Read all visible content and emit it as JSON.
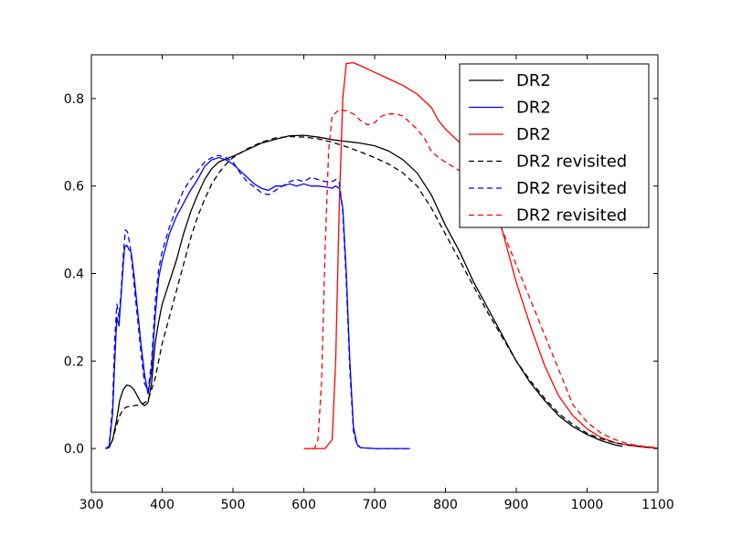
{
  "chart_data": {
    "type": "line",
    "title": "",
    "xlabel": "",
    "ylabel": "",
    "xlim": [
      300,
      1100
    ],
    "ylim": [
      -0.1,
      0.9
    ],
    "xticks": [
      300,
      400,
      500,
      600,
      700,
      800,
      900,
      1000,
      1100
    ],
    "yticks": [
      0.0,
      0.2,
      0.4,
      0.6,
      0.8
    ],
    "xtick_labels": [
      "300",
      "400",
      "500",
      "600",
      "700",
      "800",
      "900",
      "1000",
      "1100"
    ],
    "ytick_labels": [
      "0.0",
      "0.2",
      "0.4",
      "0.6",
      "0.8"
    ],
    "grid": false,
    "legend_position": "top-right",
    "series": [
      {
        "name": "DR2",
        "color": "#000000",
        "dash": "solid",
        "points": [
          [
            320,
            0.0
          ],
          [
            325,
            0.002
          ],
          [
            330,
            0.02
          ],
          [
            335,
            0.06
          ],
          [
            340,
            0.11
          ],
          [
            345,
            0.135
          ],
          [
            350,
            0.145
          ],
          [
            355,
            0.143
          ],
          [
            360,
            0.135
          ],
          [
            365,
            0.12
          ],
          [
            370,
            0.105
          ],
          [
            375,
            0.098
          ],
          [
            380,
            0.105
          ],
          [
            385,
            0.15
          ],
          [
            390,
            0.24
          ],
          [
            395,
            0.29
          ],
          [
            400,
            0.33
          ],
          [
            410,
            0.38
          ],
          [
            420,
            0.43
          ],
          [
            430,
            0.49
          ],
          [
            440,
            0.54
          ],
          [
            450,
            0.58
          ],
          [
            460,
            0.615
          ],
          [
            470,
            0.64
          ],
          [
            480,
            0.655
          ],
          [
            490,
            0.662
          ],
          [
            500,
            0.668
          ],
          [
            520,
            0.683
          ],
          [
            540,
            0.698
          ],
          [
            560,
            0.707
          ],
          [
            580,
            0.715
          ],
          [
            600,
            0.716
          ],
          [
            620,
            0.712
          ],
          [
            640,
            0.706
          ],
          [
            660,
            0.702
          ],
          [
            680,
            0.698
          ],
          [
            700,
            0.692
          ],
          [
            720,
            0.68
          ],
          [
            740,
            0.66
          ],
          [
            760,
            0.63
          ],
          [
            780,
            0.58
          ],
          [
            800,
            0.51
          ],
          [
            820,
            0.45
          ],
          [
            840,
            0.38
          ],
          [
            860,
            0.32
          ],
          [
            880,
            0.26
          ],
          [
            900,
            0.2
          ],
          [
            920,
            0.15
          ],
          [
            940,
            0.11
          ],
          [
            960,
            0.075
          ],
          [
            980,
            0.05
          ],
          [
            1000,
            0.032
          ],
          [
            1020,
            0.018
          ],
          [
            1040,
            0.008
          ],
          [
            1050,
            0.005
          ]
        ]
      },
      {
        "name": "DR2",
        "color": "#0000ff",
        "dash": "solid",
        "points": [
          [
            320,
            0.0
          ],
          [
            325,
            0.005
          ],
          [
            330,
            0.08
          ],
          [
            333,
            0.2
          ],
          [
            336,
            0.3
          ],
          [
            339,
            0.28
          ],
          [
            342,
            0.35
          ],
          [
            345,
            0.42
          ],
          [
            347,
            0.46
          ],
          [
            350,
            0.465
          ],
          [
            353,
            0.455
          ],
          [
            356,
            0.45
          ],
          [
            360,
            0.4
          ],
          [
            365,
            0.32
          ],
          [
            370,
            0.24
          ],
          [
            375,
            0.17
          ],
          [
            380,
            0.125
          ],
          [
            385,
            0.18
          ],
          [
            390,
            0.3
          ],
          [
            395,
            0.39
          ],
          [
            400,
            0.43
          ],
          [
            410,
            0.49
          ],
          [
            420,
            0.53
          ],
          [
            430,
            0.56
          ],
          [
            440,
            0.59
          ],
          [
            450,
            0.615
          ],
          [
            460,
            0.645
          ],
          [
            470,
            0.66
          ],
          [
            480,
            0.665
          ],
          [
            490,
            0.66
          ],
          [
            500,
            0.65
          ],
          [
            510,
            0.635
          ],
          [
            520,
            0.62
          ],
          [
            530,
            0.605
          ],
          [
            540,
            0.595
          ],
          [
            550,
            0.59
          ],
          [
            560,
            0.6
          ],
          [
            570,
            0.6
          ],
          [
            580,
            0.605
          ],
          [
            590,
            0.6
          ],
          [
            600,
            0.605
          ],
          [
            610,
            0.6
          ],
          [
            620,
            0.6
          ],
          [
            630,
            0.598
          ],
          [
            640,
            0.595
          ],
          [
            645,
            0.6
          ],
          [
            650,
            0.595
          ],
          [
            655,
            0.55
          ],
          [
            660,
            0.4
          ],
          [
            665,
            0.2
          ],
          [
            670,
            0.05
          ],
          [
            675,
            0.01
          ],
          [
            680,
            0.002
          ],
          [
            700,
            0.0
          ],
          [
            720,
            0.0
          ],
          [
            750,
            0.0
          ]
        ]
      },
      {
        "name": "DR2",
        "color": "#ff0000",
        "dash": "solid",
        "points": [
          [
            600,
            0.0
          ],
          [
            630,
            0.0
          ],
          [
            640,
            0.02
          ],
          [
            645,
            0.2
          ],
          [
            650,
            0.55
          ],
          [
            655,
            0.8
          ],
          [
            660,
            0.88
          ],
          [
            670,
            0.882
          ],
          [
            680,
            0.875
          ],
          [
            700,
            0.86
          ],
          [
            720,
            0.845
          ],
          [
            740,
            0.83
          ],
          [
            760,
            0.81
          ],
          [
            780,
            0.78
          ],
          [
            790,
            0.75
          ],
          [
            800,
            0.73
          ],
          [
            820,
            0.7
          ],
          [
            840,
            0.66
          ],
          [
            860,
            0.6
          ],
          [
            880,
            0.5
          ],
          [
            900,
            0.38
          ],
          [
            920,
            0.28
          ],
          [
            940,
            0.19
          ],
          [
            960,
            0.12
          ],
          [
            980,
            0.075
          ],
          [
            1000,
            0.045
          ],
          [
            1020,
            0.025
          ],
          [
            1040,
            0.013
          ],
          [
            1060,
            0.007
          ],
          [
            1080,
            0.003
          ],
          [
            1100,
            0.001
          ]
        ]
      },
      {
        "name": "DR2 revisited",
        "color": "#000000",
        "dash": "dashed",
        "points": [
          [
            320,
            0.0
          ],
          [
            325,
            0.003
          ],
          [
            330,
            0.02
          ],
          [
            335,
            0.05
          ],
          [
            340,
            0.075
          ],
          [
            345,
            0.09
          ],
          [
            350,
            0.095
          ],
          [
            360,
            0.098
          ],
          [
            370,
            0.1
          ],
          [
            380,
            0.11
          ],
          [
            390,
            0.16
          ],
          [
            400,
            0.24
          ],
          [
            410,
            0.3
          ],
          [
            420,
            0.36
          ],
          [
            430,
            0.42
          ],
          [
            440,
            0.48
          ],
          [
            450,
            0.53
          ],
          [
            460,
            0.57
          ],
          [
            470,
            0.605
          ],
          [
            480,
            0.63
          ],
          [
            490,
            0.65
          ],
          [
            500,
            0.665
          ],
          [
            520,
            0.685
          ],
          [
            540,
            0.7
          ],
          [
            560,
            0.71
          ],
          [
            580,
            0.713
          ],
          [
            600,
            0.712
          ],
          [
            620,
            0.708
          ],
          [
            640,
            0.7
          ],
          [
            660,
            0.69
          ],
          [
            680,
            0.678
          ],
          [
            700,
            0.665
          ],
          [
            720,
            0.65
          ],
          [
            740,
            0.63
          ],
          [
            760,
            0.6
          ],
          [
            780,
            0.55
          ],
          [
            800,
            0.49
          ],
          [
            820,
            0.43
          ],
          [
            840,
            0.37
          ],
          [
            860,
            0.31
          ],
          [
            880,
            0.255
          ],
          [
            900,
            0.2
          ],
          [
            920,
            0.155
          ],
          [
            940,
            0.115
          ],
          [
            960,
            0.08
          ],
          [
            980,
            0.055
          ],
          [
            1000,
            0.035
          ],
          [
            1020,
            0.022
          ],
          [
            1040,
            0.013
          ],
          [
            1060,
            0.008
          ],
          [
            1080,
            0.004
          ],
          [
            1090,
            0.002
          ]
        ]
      },
      {
        "name": "DR2 revisited",
        "color": "#0000ff",
        "dash": "dashed",
        "points": [
          [
            320,
            0.0
          ],
          [
            325,
            0.005
          ],
          [
            330,
            0.1
          ],
          [
            333,
            0.25
          ],
          [
            336,
            0.33
          ],
          [
            339,
            0.3
          ],
          [
            342,
            0.36
          ],
          [
            345,
            0.44
          ],
          [
            348,
            0.5
          ],
          [
            351,
            0.495
          ],
          [
            354,
            0.47
          ],
          [
            357,
            0.43
          ],
          [
            360,
            0.38
          ],
          [
            365,
            0.3
          ],
          [
            370,
            0.22
          ],
          [
            375,
            0.15
          ],
          [
            380,
            0.13
          ],
          [
            385,
            0.2
          ],
          [
            390,
            0.33
          ],
          [
            395,
            0.41
          ],
          [
            400,
            0.45
          ],
          [
            410,
            0.505
          ],
          [
            420,
            0.55
          ],
          [
            430,
            0.59
          ],
          [
            440,
            0.615
          ],
          [
            450,
            0.635
          ],
          [
            460,
            0.655
          ],
          [
            470,
            0.665
          ],
          [
            480,
            0.67
          ],
          [
            490,
            0.665
          ],
          [
            500,
            0.655
          ],
          [
            510,
            0.63
          ],
          [
            520,
            0.61
          ],
          [
            530,
            0.598
          ],
          [
            540,
            0.585
          ],
          [
            550,
            0.58
          ],
          [
            560,
            0.59
          ],
          [
            570,
            0.6
          ],
          [
            580,
            0.61
          ],
          [
            590,
            0.615
          ],
          [
            600,
            0.61
          ],
          [
            610,
            0.62
          ],
          [
            620,
            0.615
          ],
          [
            630,
            0.61
          ],
          [
            640,
            0.61
          ],
          [
            645,
            0.615
          ],
          [
            650,
            0.61
          ],
          [
            655,
            0.54
          ],
          [
            660,
            0.38
          ],
          [
            665,
            0.18
          ],
          [
            670,
            0.04
          ],
          [
            675,
            0.008
          ],
          [
            680,
            0.002
          ],
          [
            700,
            0.0
          ],
          [
            720,
            0.0
          ],
          [
            750,
            0.0
          ]
        ]
      },
      {
        "name": "DR2 revisited",
        "color": "#ff0000",
        "dash": "dashed",
        "points": [
          [
            600,
            0.0
          ],
          [
            615,
            0.0
          ],
          [
            620,
            0.02
          ],
          [
            625,
            0.15
          ],
          [
            630,
            0.45
          ],
          [
            635,
            0.68
          ],
          [
            640,
            0.76
          ],
          [
            650,
            0.775
          ],
          [
            660,
            0.772
          ],
          [
            670,
            0.765
          ],
          [
            680,
            0.75
          ],
          [
            690,
            0.74
          ],
          [
            700,
            0.745
          ],
          [
            710,
            0.76
          ],
          [
            720,
            0.765
          ],
          [
            730,
            0.765
          ],
          [
            740,
            0.76
          ],
          [
            750,
            0.745
          ],
          [
            760,
            0.73
          ],
          [
            770,
            0.71
          ],
          [
            780,
            0.68
          ],
          [
            790,
            0.665
          ],
          [
            800,
            0.655
          ],
          [
            810,
            0.645
          ],
          [
            820,
            0.635
          ],
          [
            840,
            0.61
          ],
          [
            860,
            0.57
          ],
          [
            880,
            0.5
          ],
          [
            900,
            0.42
          ],
          [
            920,
            0.34
          ],
          [
            940,
            0.26
          ],
          [
            960,
            0.18
          ],
          [
            980,
            0.1
          ],
          [
            1000,
            0.06
          ],
          [
            1020,
            0.035
          ],
          [
            1040,
            0.02
          ],
          [
            1060,
            0.01
          ],
          [
            1080,
            0.005
          ],
          [
            1100,
            0.002
          ]
        ]
      }
    ]
  }
}
